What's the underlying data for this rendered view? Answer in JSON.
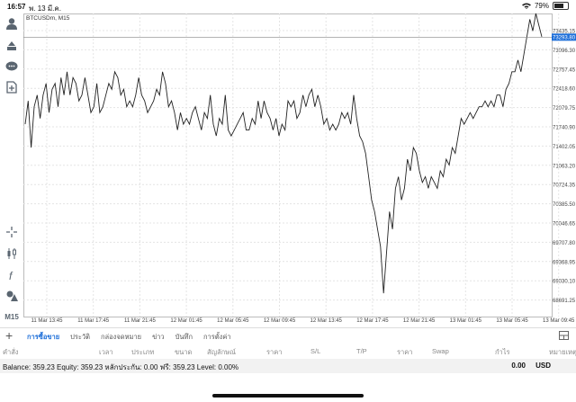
{
  "status": {
    "time": "16:57",
    "date": "พ. 13 มี.ค.",
    "battery": "79%",
    "battery_level": 0.79
  },
  "chart": {
    "symbol_label": "BTCUSDm, M15",
    "current_price": "73293.80",
    "price_ticks": [
      "73435.15",
      "73096.30",
      "72757.45",
      "72418.60",
      "72079.75",
      "71740.90",
      "71402.05",
      "71063.20",
      "70724.35",
      "70385.50",
      "70046.65",
      "69707.80",
      "69368.95",
      "69030.10",
      "68691.25"
    ],
    "time_ticks": [
      "11 Mar 13:45",
      "11 Mar 17:45",
      "11 Mar 21:45",
      "12 Mar 01:45",
      "12 Mar 05:45",
      "12 Mar 09:45",
      "12 Mar 13:45",
      "12 Mar 17:45",
      "12 Mar 21:45",
      "13 Mar 01:45",
      "13 Mar 05:45",
      "13 Mar 09:45"
    ],
    "grid_color": "#e4e4e4",
    "line_color": "#222222",
    "price_tag_color": "#1e6fd9"
  },
  "chart_data": {
    "type": "line",
    "x_unit": "bar index (M15 bars, first = ~11 Mar 13:00)",
    "ylim": [
      68500,
      73700
    ],
    "grid": true,
    "series": [
      {
        "values": [
          71800,
          72200,
          71400,
          72100,
          72300,
          71900,
          72300,
          72500,
          72000,
          72400,
          72500,
          72100,
          72600,
          72300,
          72700,
          72300,
          72600,
          72500,
          72200,
          72300,
          72600,
          72300,
          72000,
          72100,
          72500,
          72000,
          72100,
          72300,
          72500,
          72400,
          72700,
          72600,
          72300,
          72400,
          72100,
          72200,
          72100,
          72300,
          72600,
          72300,
          72200,
          72000,
          72100,
          72200,
          72400,
          72300,
          72700,
          72500,
          72100,
          72200,
          72000,
          71700,
          72000,
          71800,
          71900,
          71800,
          72000,
          72100,
          71900,
          71700,
          72000,
          71900,
          72300,
          71800,
          71600,
          71900,
          71800,
          72300,
          71700,
          71600,
          71700,
          71800,
          71900,
          72000,
          71700,
          71700,
          71900,
          71800,
          72200,
          71900,
          72200,
          72000,
          71900,
          71700,
          71900,
          71600,
          71800,
          71700,
          72200,
          72100,
          72200,
          71900,
          72000,
          72300,
          72100,
          72300,
          72400,
          72100,
          72300,
          72100,
          71800,
          71900,
          71700,
          71800,
          71700,
          71800,
          72000,
          71900,
          72000,
          71800,
          72300,
          71900,
          71600,
          71500,
          71300,
          70900,
          70500,
          70300,
          70000,
          69700,
          68900,
          69600,
          70300,
          70000,
          70700,
          70900,
          70500,
          70700,
          71200,
          71000,
          71400,
          71300,
          71000,
          70800,
          70900,
          70700,
          70900,
          70800,
          70700,
          71000,
          70900,
          71200,
          71100,
          71400,
          71300,
          71600,
          71900,
          71800,
          71900,
          72000,
          71900,
          72000,
          72100,
          72100,
          72200,
          72100,
          72200,
          72100,
          72300,
          72300,
          72100,
          72400,
          72500,
          72700,
          72700,
          72900,
          72700,
          73000,
          73300,
          73600,
          73400,
          73700,
          73500,
          73300
        ]
      }
    ]
  },
  "toolbar": {
    "timeframe": "M15"
  },
  "tabs": [
    {
      "label": "การซื้อขาย",
      "active": true
    },
    {
      "label": "ประวัติ",
      "active": false
    },
    {
      "label": "กล่องจดหมาย",
      "active": false
    },
    {
      "label": "ข่าว",
      "active": false
    },
    {
      "label": "บันทึก",
      "active": false
    },
    {
      "label": "การตั้งค่า",
      "active": false
    }
  ],
  "columns": [
    "คำสั่ง",
    "เวลา",
    "ประเภท",
    "ขนาด",
    "สัญลักษณ์",
    "ราคา",
    "S/L",
    "T/P",
    "ราคา",
    "Swap",
    "กำไร",
    "หมายเหตุ"
  ],
  "balance": {
    "text": "Balance: 359.23 Equity: 359.23 หลักประกัน: 0.00 ฟรี: 359.23 Level: 0.00%",
    "profit": "0.00",
    "currency": "USD"
  }
}
